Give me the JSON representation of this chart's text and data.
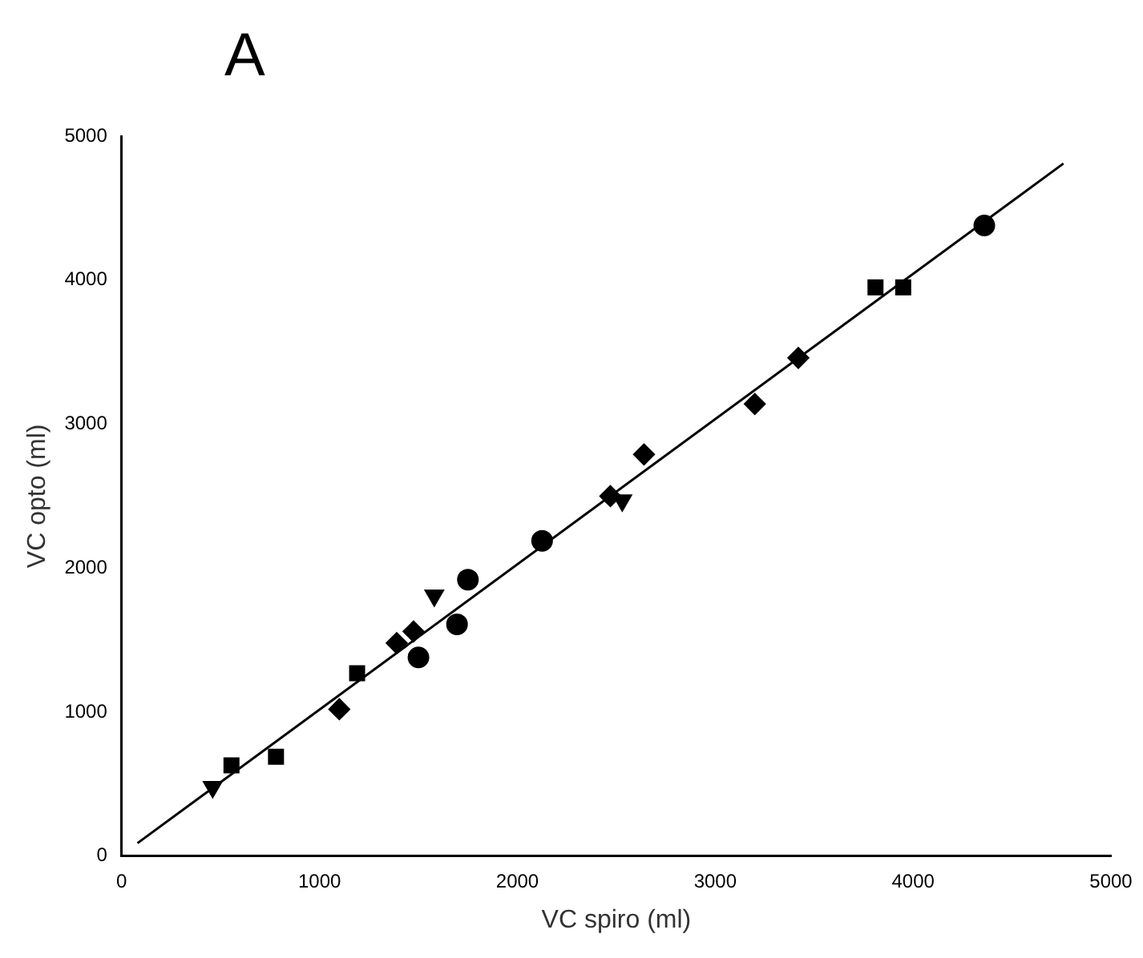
{
  "chart_data": {
    "type": "scatter",
    "title": "A",
    "xlabel": "VC spiro (ml)",
    "ylabel": "VC opto (ml)",
    "xlim": [
      0,
      5000
    ],
    "ylim": [
      0,
      5000
    ],
    "xticks": [
      0,
      1000,
      2000,
      3000,
      4000,
      5000
    ],
    "yticks": [
      0,
      1000,
      2000,
      3000,
      4000,
      5000
    ],
    "grid": false,
    "legend": false,
    "series": [
      {
        "color": "#000000",
        "marker": "triangle",
        "x": [
          460,
          1580,
          2530
        ],
        "values": [
          480,
          1810,
          2470
        ]
      },
      {
        "color": "#000000",
        "marker": "square",
        "x": [
          555,
          780,
          1190
        ],
        "values": [
          630,
          690,
          1270
        ]
      },
      {
        "color": "#000000",
        "marker": "diamond",
        "x": [
          1390,
          1475
        ],
        "values": [
          1480,
          1560
        ]
      },
      {
        "color": "#000000",
        "marker": "circle",
        "x": [
          1500
        ],
        "values": [
          1380
        ]
      },
      {
        "color": "#000000",
        "marker": "diamond",
        "x": [
          1100,
          2470,
          2640,
          3200,
          3420
        ],
        "values": [
          1020,
          2500,
          2790,
          3140,
          3460
        ]
      },
      {
        "color": "#000000",
        "marker": "circle",
        "x": [
          1695,
          1750,
          2125,
          4360
        ],
        "values": [
          1610,
          1920,
          2190,
          4380
        ]
      },
      {
        "color": "#000000",
        "marker": "square",
        "x": [
          3810,
          3950
        ],
        "values": [
          3950,
          3950
        ]
      },
      {
        "type": "line",
        "color": "#000000",
        "marker": "none",
        "x": [
          80,
          4760
        ],
        "values": [
          90,
          4810
        ]
      }
    ]
  }
}
